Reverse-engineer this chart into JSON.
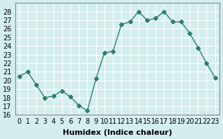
{
  "xlabel": "Humidex (Indice chaleur)",
  "ylabel": "",
  "x": [
    0,
    1,
    2,
    3,
    4,
    5,
    6,
    7,
    8,
    9,
    10,
    11,
    12,
    13,
    14,
    15,
    16,
    17,
    18,
    19,
    20,
    21,
    22,
    23
  ],
  "y": [
    20.5,
    21.0,
    19.5,
    18.0,
    18.2,
    18.8,
    18.1,
    17.1,
    16.5,
    20.2,
    23.2,
    23.4,
    26.5,
    26.8,
    28.0,
    27.0,
    27.2,
    28.0,
    26.8,
    26.8,
    25.5,
    23.8,
    22.0,
    20.3
  ],
  "ylim": [
    16,
    29
  ],
  "yticks": [
    16,
    17,
    18,
    19,
    20,
    21,
    22,
    23,
    24,
    25,
    26,
    27,
    28
  ],
  "line_color": "#2e7d6e",
  "marker": "D",
  "marker_size": 3,
  "bg_color": "#d4eeee",
  "grid_color": "#ffffff",
  "title_fontsize": 8,
  "label_fontsize": 8,
  "tick_fontsize": 7
}
